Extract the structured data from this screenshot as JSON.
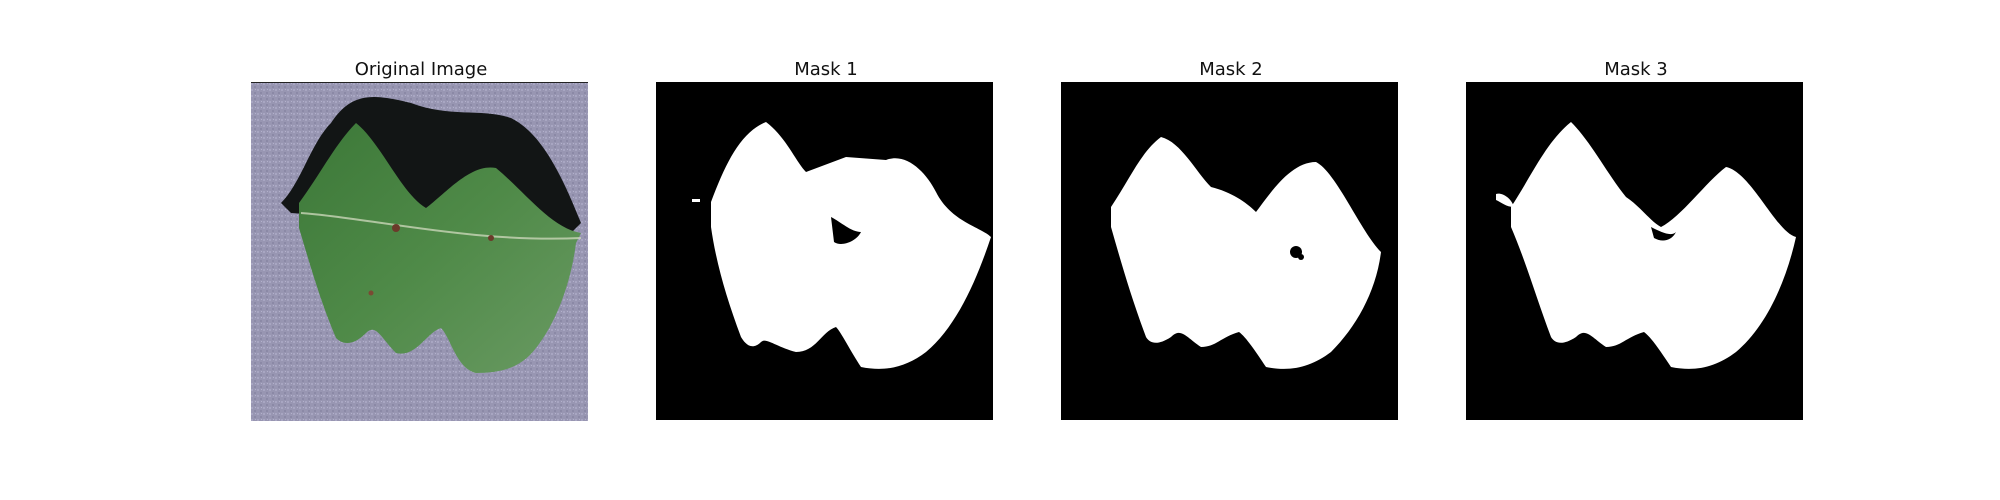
{
  "panels": [
    {
      "title": "Original Image",
      "kind": "photo",
      "description_icon": "leaf-photo"
    },
    {
      "title": "Mask 1",
      "kind": "mask"
    },
    {
      "title": "Mask 2",
      "kind": "mask"
    },
    {
      "title": "Mask 3",
      "kind": "mask"
    }
  ],
  "colors": {
    "background_surface": "#9a98b5",
    "leaf_green": "#3f7d3b",
    "leaf_dark": "#2f5f2d",
    "mask_bg": "#000000",
    "mask_fg": "#ffffff"
  }
}
